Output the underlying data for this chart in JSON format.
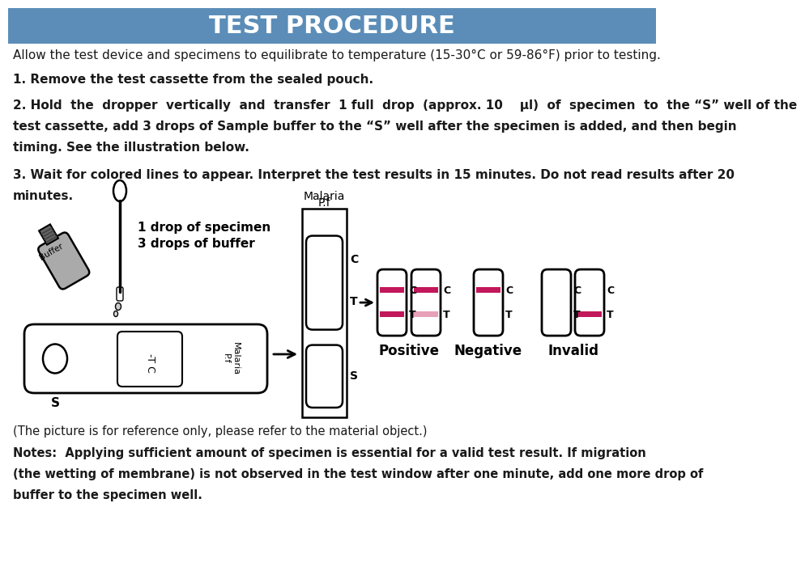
{
  "title": "TEST PROCEDURE",
  "title_bg": "#5B8DB8",
  "title_color": "#FFFFFF",
  "bg_color": "#FFFFFF",
  "text_color": "#1a1a1a",
  "line0": "Allow the test device and specimens to equilibrate to temperature (15-30°C or 59-86°F) prior to testing.",
  "line1": "1. Remove the test cassette from the sealed pouch.",
  "line2a": "2. Hold  the  dropper  vertically  and  transfer  1 full  drop  (approx. 10    μl)  of  specimen  to  the “S” well of the",
  "line2b": "test cassette, add 3 drops of Sample buffer to the “S” well after the specimen is added, and then begin",
  "line2c": "timing. See the illustration below.",
  "line3a": "3. Wait for colored lines to appear. Interpret the test results in 15 minutes. Do not read results after 20",
  "line3b": "minutes.",
  "label_drop1": "1 drop of specimen",
  "label_drop2": "3 drops of buffer",
  "label_malaria": "Malaria",
  "label_pf": "P.f",
  "label_positive": "Positive",
  "label_negative": "Negative",
  "label_invalid": "Invalid",
  "note1": "(The picture is for reference only, please refer to the material object.)",
  "note2": "Notes:  Applying sufficient amount of specimen is essential for a valid test result. If migration",
  "note3": "(the wetting of membrane) is not observed in the test window after one minute, add one more drop of",
  "note4": "buffer to the specimen well.",
  "pink_color": "#C2185B",
  "light_pink_color": "#E8A0B8",
  "gray_color": "#AAAAAA",
  "dark_gray": "#666666"
}
